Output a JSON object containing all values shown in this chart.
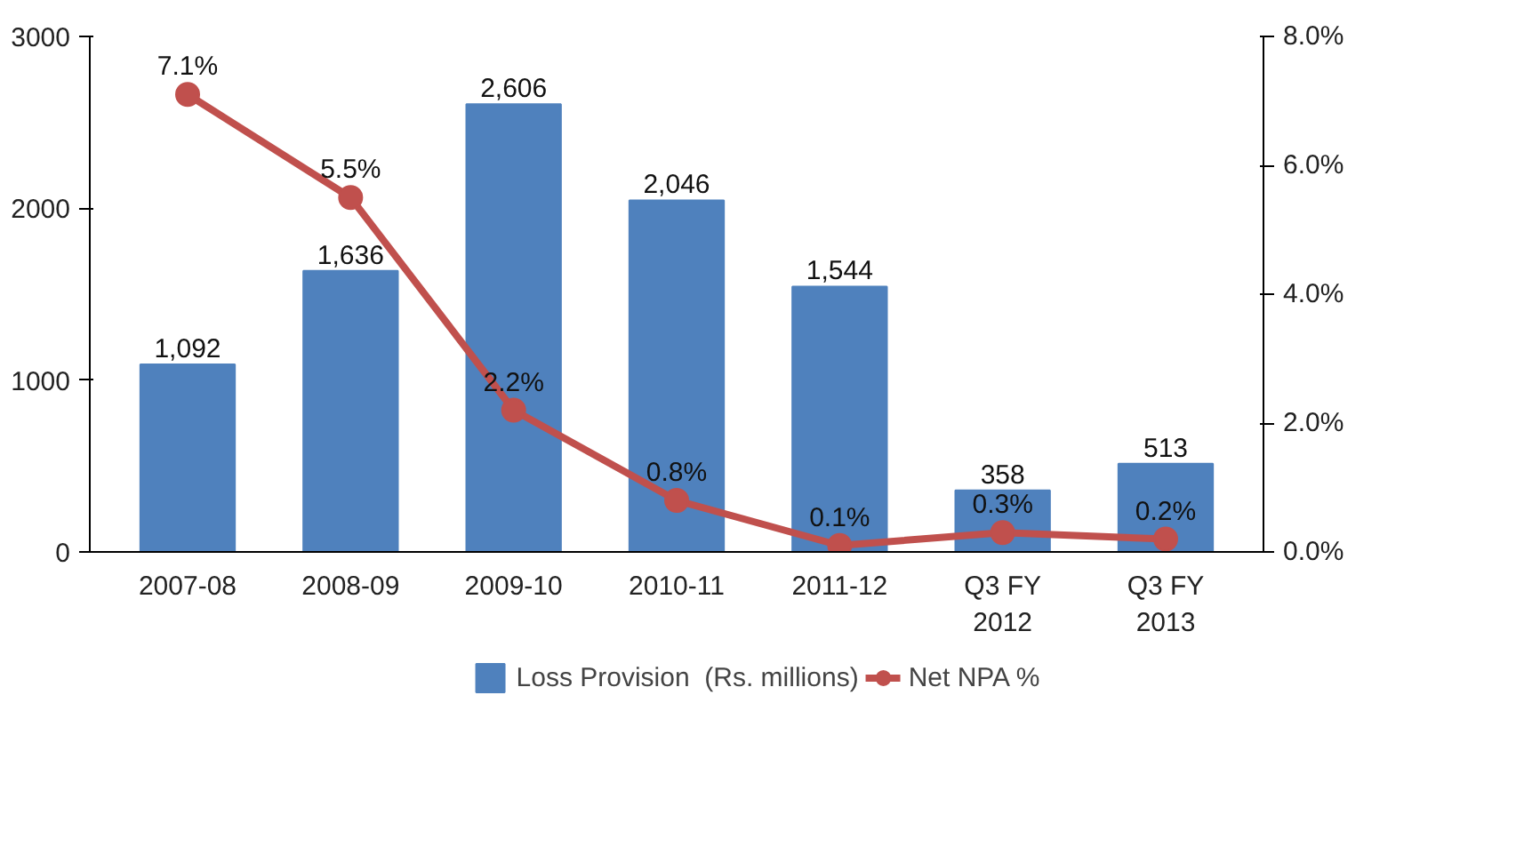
{
  "chart_data": {
    "type": "bar",
    "categories": [
      "2007-08",
      "2008-09",
      "2009-10",
      "2010-11",
      "2011-12",
      "Q3 FY\n2012",
      "Q3 FY\n2013"
    ],
    "series": [
      {
        "name": "Loss Provision  (Rs. millions)",
        "color": "#4f81bd",
        "values": [
          1092,
          1636,
          2606,
          2046,
          1544,
          358,
          513
        ],
        "value_labels": [
          "1,092",
          "1,636",
          "2,606",
          "2,046",
          "1,544",
          "358",
          "513"
        ]
      },
      {
        "name": "Net NPA %",
        "type": "line",
        "axis": "y2",
        "color": "#c0504d",
        "values": [
          7.1,
          5.5,
          2.2,
          0.8,
          0.1,
          0.3,
          0.2
        ],
        "value_labels": [
          "7.1%",
          "5.5%",
          "2.2%",
          "0.8%",
          "0.1%",
          "0.3%",
          "0.2%"
        ]
      }
    ],
    "ylim": [
      0,
      3000
    ],
    "yticks": [
      0,
      1000,
      2000,
      3000
    ],
    "y2lim": [
      0,
      8
    ],
    "y2ticks": [
      {
        "value": 0,
        "label": "0.0%"
      },
      {
        "value": 2,
        "label": "2.0%"
      },
      {
        "value": 4,
        "label": "4.0%"
      },
      {
        "value": 6,
        "label": "6.0%"
      },
      {
        "value": 8,
        "label": "8.0%"
      }
    ],
    "marker": "circle",
    "grid": false,
    "legend": "bottom"
  }
}
